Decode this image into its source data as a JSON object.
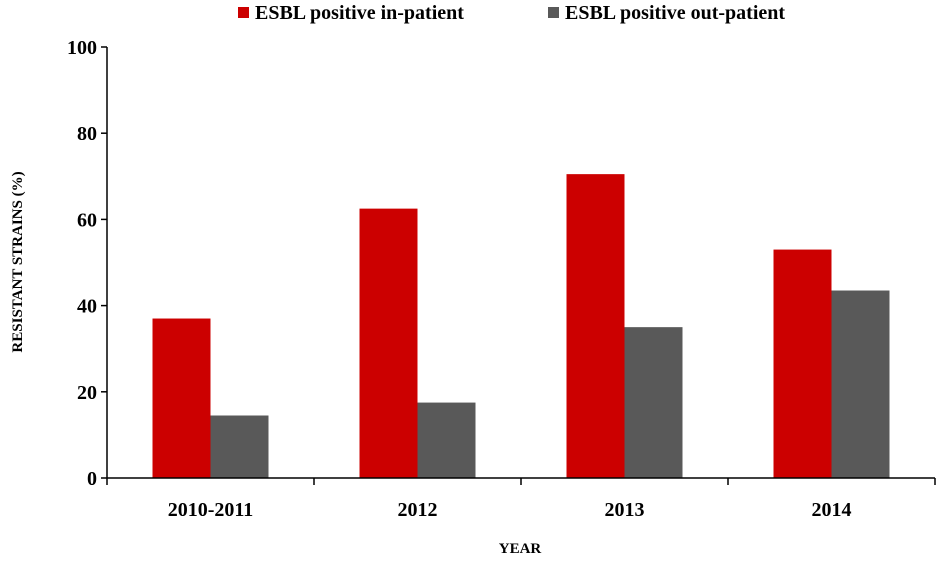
{
  "chart_data": {
    "type": "bar",
    "title": "",
    "xlabel": "YEAR",
    "ylabel": "RESISTANT STRAINS (%)",
    "categories": [
      "2010-2011",
      "2012",
      "2013",
      "2014"
    ],
    "series": [
      {
        "name": "ESBL positive in-patient",
        "color": "#cc0000",
        "values": [
          37,
          62.5,
          70.5,
          53
        ]
      },
      {
        "name": "ESBL positive out-patient",
        "color": "#595959",
        "values": [
          14.5,
          17.5,
          35,
          43.5
        ]
      }
    ],
    "ylim": [
      0,
      100
    ],
    "yticks": [
      "0",
      "20",
      "40",
      "60",
      "80",
      "100"
    ],
    "grid": false,
    "legend_position": "top"
  }
}
